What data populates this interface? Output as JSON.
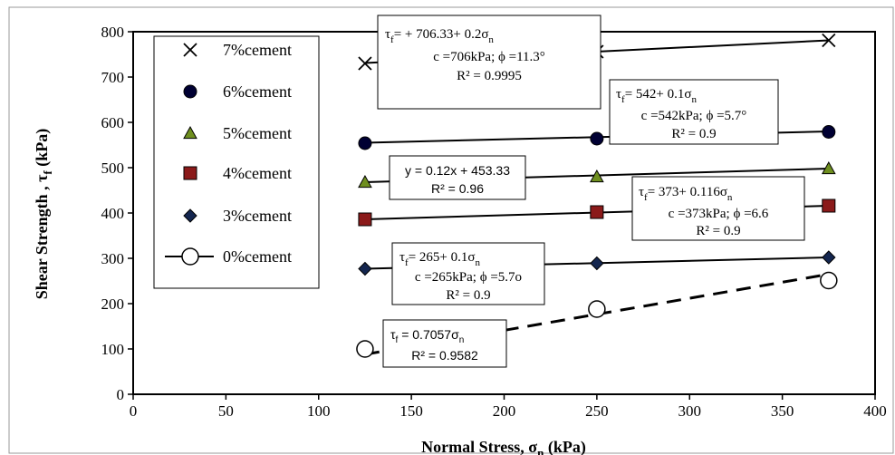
{
  "chart_data": {
    "type": "scatter",
    "xlabel": "Normal Stress, σ",
    "xlabel_sub": "n",
    "xlabel_unit": "(kPa)",
    "ylabel": "Shear Strength , τ",
    "ylabel_sub": "f",
    "ylabel_unit": "(kPa)",
    "xlim": [
      0,
      400
    ],
    "ylim": [
      0,
      800
    ],
    "xticks": [
      0,
      50,
      100,
      150,
      200,
      250,
      300,
      350,
      400
    ],
    "yticks": [
      0,
      100,
      200,
      300,
      400,
      500,
      600,
      700,
      800
    ],
    "grid": false,
    "legend_position": "top-left",
    "series": [
      {
        "name": "7%cement",
        "marker": "x",
        "color": "#000000",
        "x": [
          125,
          250,
          375
        ],
        "y": [
          730,
          756,
          781
        ],
        "fit": [
          [
            125,
            731
          ],
          [
            375,
            781
          ]
        ],
        "fit_dashed": false
      },
      {
        "name": "6%cement",
        "marker": "circle-filled",
        "color": "#000033",
        "x": [
          125,
          250,
          375
        ],
        "y": [
          554,
          564,
          579
        ],
        "fit": [
          [
            125,
            555
          ],
          [
            375,
            580
          ]
        ],
        "fit_dashed": false
      },
      {
        "name": "5%cement",
        "marker": "triangle",
        "color": "#6f8f1f",
        "x": [
          125,
          250,
          375
        ],
        "y": [
          468,
          480,
          498
        ],
        "fit": [
          [
            125,
            468
          ],
          [
            375,
            498
          ]
        ],
        "fit_dashed": false
      },
      {
        "name": "4%cement",
        "marker": "square",
        "color": "#8b1a1a",
        "x": [
          125,
          250,
          375
        ],
        "y": [
          386,
          402,
          416
        ],
        "fit": [
          [
            125,
            386
          ],
          [
            375,
            416
          ]
        ],
        "fit_dashed": false
      },
      {
        "name": "3%cement",
        "marker": "diamond",
        "color": "#14264f",
        "x": [
          125,
          250,
          375
        ],
        "y": [
          277,
          289,
          302
        ],
        "fit": [
          [
            125,
            277
          ],
          [
            375,
            302
          ]
        ],
        "fit_dashed": false
      },
      {
        "name": "0%cement",
        "marker": "circle-open",
        "color": "#000000",
        "x": [
          125,
          250,
          375
        ],
        "y": [
          100,
          188,
          251
        ],
        "fit": [
          [
            125,
            88
          ],
          [
            375,
            265
          ]
        ],
        "fit_dashed": true
      }
    ],
    "annotations": [
      {
        "lines": [
          "τ= + 706.33+ 0.2σ",
          "c =706kPa; ϕ =11.3°",
          "R² = 0.9995"
        ]
      },
      {
        "lines": [
          "τ= 542+ 0.1σ",
          "c =542kPa; ϕ =5.7°",
          "R² = 0.9"
        ]
      },
      {
        "lines": [
          "y = 0.12x + 453.33",
          "R² = 0.96"
        ]
      },
      {
        "lines": [
          "τ= 373+ 0.116σ",
          "c =373kPa; ϕ =6.6",
          "R² = 0.9"
        ]
      },
      {
        "lines": [
          "τ= 265+ 0.1σ",
          "c =265kPa; ϕ =5.7o",
          "R² = 0.9"
        ]
      },
      {
        "lines": [
          "τ= 0.7057σ",
          "R² = 0.9582"
        ]
      }
    ]
  }
}
